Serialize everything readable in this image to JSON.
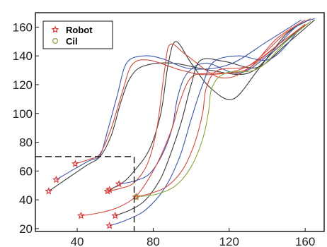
{
  "chart_data": {
    "type": "line",
    "title": "",
    "xlabel": "",
    "ylabel": "",
    "xlim": [
      18,
      170
    ],
    "ylim": [
      18,
      170
    ],
    "x_ticks": [
      40,
      80,
      120,
      160
    ],
    "y_ticks": [
      20,
      40,
      60,
      80,
      100,
      120,
      140,
      160
    ],
    "grid": false,
    "legend": {
      "placement": "top-left",
      "entries": [
        {
          "label": "Robot",
          "marker": "star",
          "color": "#d93a3a"
        },
        {
          "label": "Cil",
          "marker": "circle",
          "color": "#8aa63a"
        }
      ]
    },
    "reference_box": {
      "x_max": 70,
      "y_max": 70,
      "style": "dashed",
      "color": "#222222"
    },
    "series": [
      {
        "color": "#3b3b3b",
        "start_marker": "star",
        "points": [
          [
            25,
            46
          ],
          [
            35,
            55
          ],
          [
            45,
            64
          ],
          [
            52,
            70
          ],
          [
            58,
            85
          ],
          [
            63,
            108
          ],
          [
            68,
            125
          ],
          [
            75,
            133
          ],
          [
            90,
            135
          ],
          [
            110,
            130
          ],
          [
            130,
            128
          ],
          [
            145,
            145
          ],
          [
            160,
            162
          ]
        ]
      },
      {
        "color": "#3c57a8",
        "start_marker": "star",
        "points": [
          [
            29,
            54
          ],
          [
            38,
            61
          ],
          [
            46,
            67
          ],
          [
            52,
            71
          ],
          [
            56,
            88
          ],
          [
            61,
            112
          ],
          [
            66,
            135
          ],
          [
            75,
            140
          ],
          [
            85,
            138
          ],
          [
            100,
            131
          ],
          [
            120,
            134
          ],
          [
            140,
            150
          ],
          [
            158,
            165
          ]
        ]
      },
      {
        "color": "#d14a3c",
        "start_marker": "star",
        "points": [
          [
            39,
            65
          ],
          [
            46,
            68
          ],
          [
            52,
            72
          ],
          [
            58,
            90
          ],
          [
            64,
            116
          ],
          [
            69,
            134
          ],
          [
            78,
            137
          ],
          [
            95,
            130
          ],
          [
            110,
            127
          ],
          [
            130,
            133
          ],
          [
            150,
            156
          ],
          [
            163,
            166
          ]
        ]
      },
      {
        "color": "#3b3b3b",
        "start_marker": "star",
        "points": [
          [
            57,
            47
          ],
          [
            64,
            52
          ],
          [
            70,
            60
          ],
          [
            78,
            75
          ],
          [
            84,
            100
          ],
          [
            88,
            135
          ],
          [
            92,
            150
          ],
          [
            100,
            135
          ],
          [
            110,
            118
          ],
          [
            122,
            110
          ],
          [
            135,
            130
          ],
          [
            150,
            155
          ],
          [
            162,
            165
          ]
        ]
      },
      {
        "color": "#d14a3c",
        "start_marker": "star",
        "points": [
          [
            56,
            46
          ],
          [
            63,
            48
          ],
          [
            70,
            52
          ],
          [
            77,
            65
          ],
          [
            82,
            90
          ],
          [
            86,
            130
          ],
          [
            89,
            148
          ],
          [
            98,
            140
          ],
          [
            115,
            125
          ],
          [
            130,
            131
          ],
          [
            145,
            152
          ],
          [
            160,
            165
          ]
        ]
      },
      {
        "color": "#3c57a8",
        "start_marker": "star",
        "points": [
          [
            62,
            51
          ],
          [
            70,
            53
          ],
          [
            78,
            58
          ],
          [
            85,
            72
          ],
          [
            90,
            90
          ],
          [
            93,
            112
          ],
          [
            98,
            128
          ],
          [
            108,
            135
          ],
          [
            125,
            128
          ],
          [
            140,
            140
          ],
          [
            155,
            160
          ],
          [
            165,
            166
          ]
        ]
      },
      {
        "color": "#d14a3c",
        "start_marker": "star",
        "points": [
          [
            42,
            29
          ],
          [
            52,
            31
          ],
          [
            62,
            35
          ],
          [
            72,
            44
          ],
          [
            82,
            65
          ],
          [
            90,
            90
          ],
          [
            94,
            108
          ],
          [
            100,
            125
          ],
          [
            110,
            128
          ],
          [
            128,
            130
          ],
          [
            148,
            150
          ],
          [
            162,
            163
          ]
        ]
      },
      {
        "color": "#3b3b3b",
        "start_marker": "star",
        "points": [
          [
            60,
            29
          ],
          [
            68,
            33
          ],
          [
            76,
            40
          ],
          [
            84,
            55
          ],
          [
            90,
            75
          ],
          [
            95,
            95
          ],
          [
            100,
            120
          ],
          [
            105,
            137
          ],
          [
            118,
            136
          ],
          [
            135,
            132
          ],
          [
            150,
            148
          ],
          [
            165,
            165
          ]
        ]
      },
      {
        "color": "#3c57a8",
        "start_marker": "star",
        "points": [
          [
            57,
            22
          ],
          [
            66,
            26
          ],
          [
            76,
            33
          ],
          [
            86,
            48
          ],
          [
            94,
            70
          ],
          [
            100,
            96
          ],
          [
            106,
            120
          ],
          [
            112,
            136
          ],
          [
            125,
            140
          ],
          [
            142,
            138
          ],
          [
            158,
            160
          ]
        ]
      },
      {
        "color": "#d14a3c",
        "start_marker": "star",
        "points": [
          [
            71,
            42
          ],
          [
            80,
            45
          ],
          [
            88,
            50
          ],
          [
            96,
            62
          ],
          [
            102,
            80
          ],
          [
            106,
            100
          ],
          [
            108,
            118
          ],
          [
            114,
            130
          ],
          [
            130,
            133
          ],
          [
            146,
            148
          ],
          [
            160,
            162
          ]
        ]
      },
      {
        "color": "#8aa63a",
        "start_marker": "circle",
        "points": [
          [
            71,
            42
          ],
          [
            82,
            44
          ],
          [
            92,
            50
          ],
          [
            100,
            63
          ],
          [
            106,
            82
          ],
          [
            109,
            100
          ],
          [
            111,
            118
          ],
          [
            118,
            128
          ],
          [
            135,
            131
          ],
          [
            150,
            150
          ],
          [
            163,
            164
          ]
        ]
      }
    ]
  }
}
